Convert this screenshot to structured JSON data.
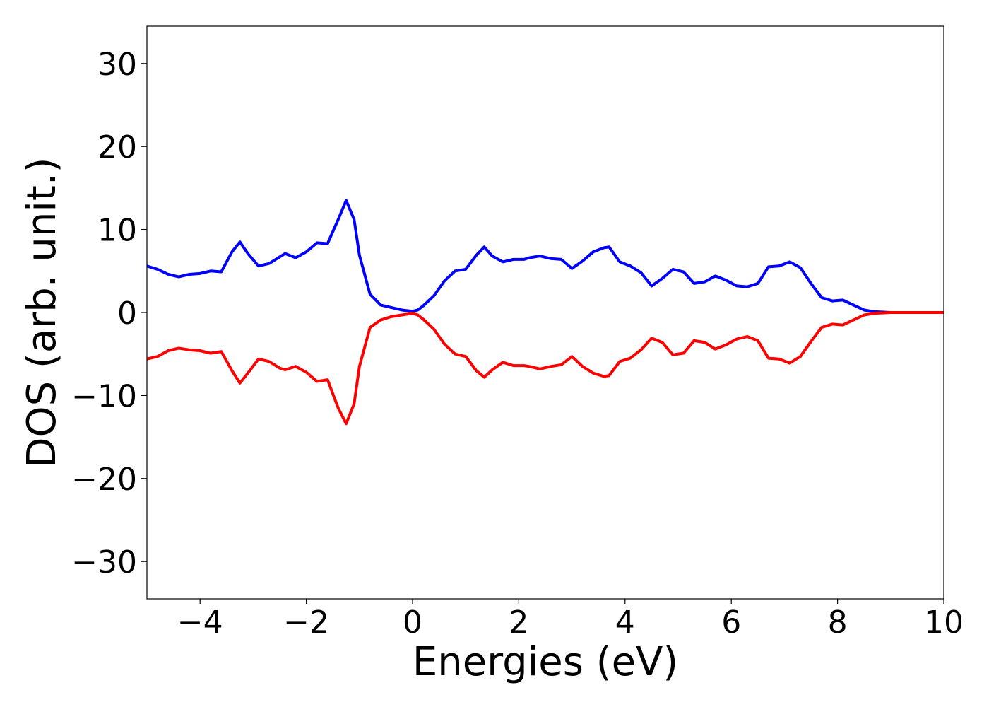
{
  "chart_data": {
    "type": "line",
    "x_label": "Energies (eV)",
    "y_label": "DOS (arb. unit.)",
    "x": [
      -5,
      -4.8,
      -4.6,
      -4.4,
      -4.2,
      -4,
      -3.8,
      -3.6,
      -3.4,
      -3.25,
      -3.1,
      -2.9,
      -2.7,
      -2.5,
      -2.4,
      -2.2,
      -2,
      -1.8,
      -1.6,
      -1.4,
      -1.25,
      -1.1,
      -1,
      -0.8,
      -0.6,
      -0.4,
      -0.2,
      0,
      0.1,
      0.2,
      0.4,
      0.6,
      0.8,
      1,
      1.2,
      1.35,
      1.5,
      1.7,
      1.9,
      2.1,
      2.2,
      2.4,
      2.6,
      2.8,
      3,
      3.2,
      3.4,
      3.6,
      3.7,
      3.9,
      4.1,
      4.3,
      4.5,
      4.7,
      4.9,
      5.1,
      5.3,
      5.5,
      5.7,
      5.9,
      6.1,
      6.3,
      6.5,
      6.7,
      6.9,
      7.1,
      7.3,
      7.5,
      7.7,
      7.9,
      8.1,
      8.3,
      8.5,
      8.7,
      9,
      10
    ],
    "series": [
      {
        "color": "#0000ff",
        "values": [
          5.6,
          5.2,
          4.6,
          4.3,
          4.6,
          4.7,
          5.0,
          4.9,
          7.3,
          8.5,
          7.1,
          5.6,
          5.9,
          6.7,
          7.1,
          6.6,
          7.3,
          8.4,
          8.3,
          11.2,
          13.5,
          11.2,
          6.9,
          2.2,
          0.9,
          0.6,
          0.3,
          0.15,
          0.3,
          0.8,
          2.0,
          3.8,
          5.0,
          5.2,
          6.9,
          7.9,
          6.8,
          6.1,
          6.4,
          6.4,
          6.6,
          6.8,
          6.5,
          6.4,
          5.3,
          6.2,
          7.3,
          7.8,
          7.9,
          6.1,
          5.6,
          4.8,
          3.2,
          4.1,
          5.2,
          4.9,
          3.5,
          3.7,
          4.4,
          3.9,
          3.2,
          3.1,
          3.5,
          5.5,
          5.6,
          6.1,
          5.4,
          3.5,
          1.8,
          1.4,
          1.5,
          0.9,
          0.3,
          0.1,
          0,
          0
        ]
      },
      {
        "color": "#ff0000",
        "values": [
          -5.6,
          -5.3,
          -4.6,
          -4.3,
          -4.5,
          -4.6,
          -4.9,
          -4.7,
          -7.0,
          -8.5,
          -7.3,
          -5.6,
          -5.9,
          -6.7,
          -6.9,
          -6.5,
          -7.2,
          -8.3,
          -8.1,
          -11.5,
          -13.4,
          -11,
          -6.5,
          -1.8,
          -0.9,
          -0.5,
          -0.3,
          -0.1,
          -0.3,
          -0.8,
          -2.0,
          -3.8,
          -5.0,
          -5.3,
          -7.0,
          -7.8,
          -6.9,
          -6.0,
          -6.4,
          -6.4,
          -6.5,
          -6.8,
          -6.5,
          -6.3,
          -5.3,
          -6.5,
          -7.3,
          -7.7,
          -7.6,
          -5.9,
          -5.5,
          -4.5,
          -3.1,
          -3.6,
          -5.1,
          -4.9,
          -3.4,
          -3.6,
          -4.4,
          -3.9,
          -3.2,
          -2.9,
          -3.4,
          -5.5,
          -5.6,
          -6.1,
          -5.3,
          -3.5,
          -1.8,
          -1.4,
          -1.5,
          -0.9,
          -0.3,
          -0.1,
          0,
          0
        ]
      }
    ],
    "xlim": [
      -5,
      10
    ],
    "ylim": [
      -34.5,
      34.5
    ],
    "xticks": [
      {
        "value": -4,
        "label": "−4"
      },
      {
        "value": -2,
        "label": "−2"
      },
      0,
      2,
      4,
      6,
      8,
      10
    ],
    "yticks": [
      {
        "value": -30,
        "label": "−30"
      },
      {
        "value": -20,
        "label": "−20"
      },
      {
        "value": -10,
        "label": "−10"
      },
      0,
      10,
      20,
      30
    ],
    "grid": false
  }
}
